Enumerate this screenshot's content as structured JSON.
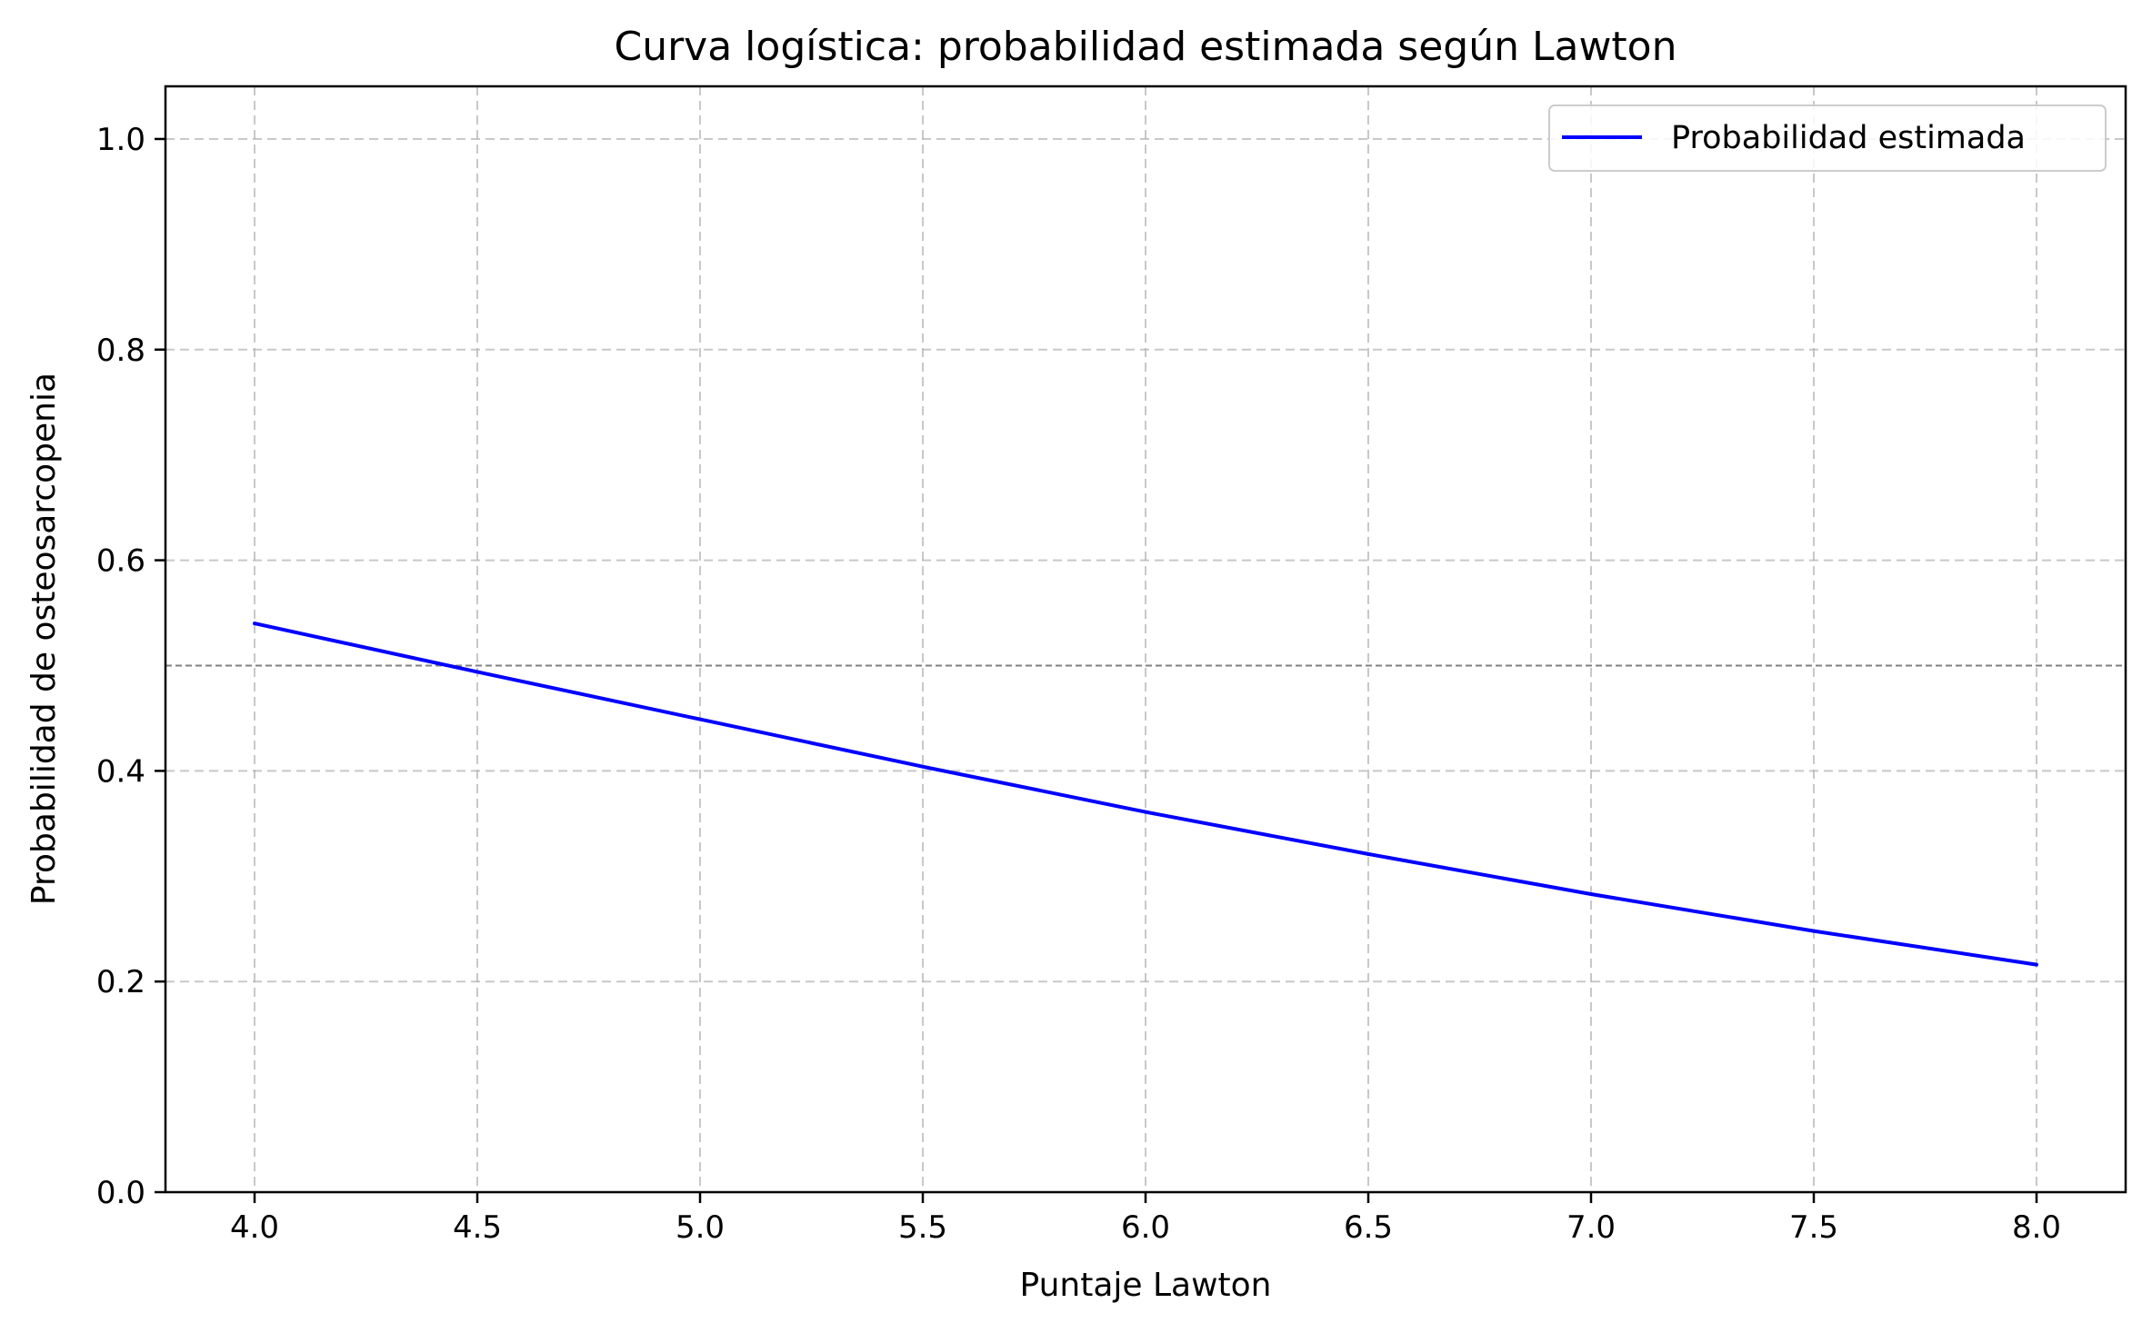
{
  "chart_data": {
    "type": "line",
    "title": "Curva logística: probabilidad estimada según Lawton",
    "xlabel": "Puntaje Lawton",
    "ylabel": "Probabilidad de osteosarcopenia",
    "xlim": [
      3.8,
      8.2
    ],
    "ylim": [
      0.0,
      1.05
    ],
    "xticks": [
      4.0,
      4.5,
      5.0,
      5.5,
      6.0,
      6.5,
      7.0,
      7.5,
      8.0
    ],
    "xtick_labels": [
      "4.0",
      "4.5",
      "5.0",
      "5.5",
      "6.0",
      "6.5",
      "7.0",
      "7.5",
      "8.0"
    ],
    "yticks": [
      0.0,
      0.2,
      0.4,
      0.6,
      0.8,
      1.0
    ],
    "ytick_labels": [
      "0.0",
      "0.2",
      "0.4",
      "0.6",
      "0.8",
      "1.0"
    ],
    "grid": true,
    "legend_position": "top-right",
    "series": [
      {
        "name": "Probabilidad estimada",
        "color": "#0000ff",
        "x": [
          4.0,
          4.5,
          5.0,
          5.5,
          6.0,
          6.5,
          7.0,
          7.5,
          8.0
        ],
        "y": [
          0.54,
          0.494,
          0.449,
          0.404,
          0.361,
          0.321,
          0.283,
          0.248,
          0.216
        ]
      }
    ],
    "reference_line": {
      "y": 0.5,
      "color": "#808080",
      "style": "dashed"
    }
  }
}
